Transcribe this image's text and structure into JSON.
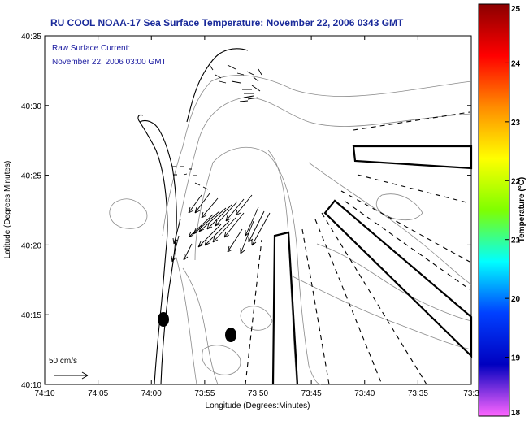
{
  "title": "RU COOL  NOAA-17  Sea Surface Temperature:  November 22, 2006 0343 GMT",
  "overlay": {
    "line1": "Raw Surface Current:",
    "line2": "November 22, 2006 03:00 GMT"
  },
  "scale": {
    "label": "50 cm/s"
  },
  "axes": {
    "xlabel": "Longitude (Degrees:Minutes)",
    "ylabel": "Latitude (Degrees:Minutes)",
    "xticks": [
      "74:10",
      "74:05",
      "74:00",
      "73:55",
      "73:50",
      "73:45",
      "73:40",
      "73:35",
      "73:3"
    ],
    "yticks": [
      "40:35",
      "40:30",
      "40:25",
      "40:20",
      "40:15",
      "40:10"
    ]
  },
  "colorbar": {
    "label": "Temperature (°C)",
    "ticks": [
      "25",
      "24",
      "23",
      "22",
      "21",
      "20",
      "19",
      "18"
    ],
    "colors": [
      "#8b0000",
      "#ff0000",
      "#ff8c00",
      "#ffff00",
      "#7fff00",
      "#00ffff",
      "#0040ff",
      "#0000c0",
      "#ff66ff"
    ]
  },
  "colors": {
    "title": "#1a2a9a",
    "overlay_text": "#1a1aa0"
  }
}
